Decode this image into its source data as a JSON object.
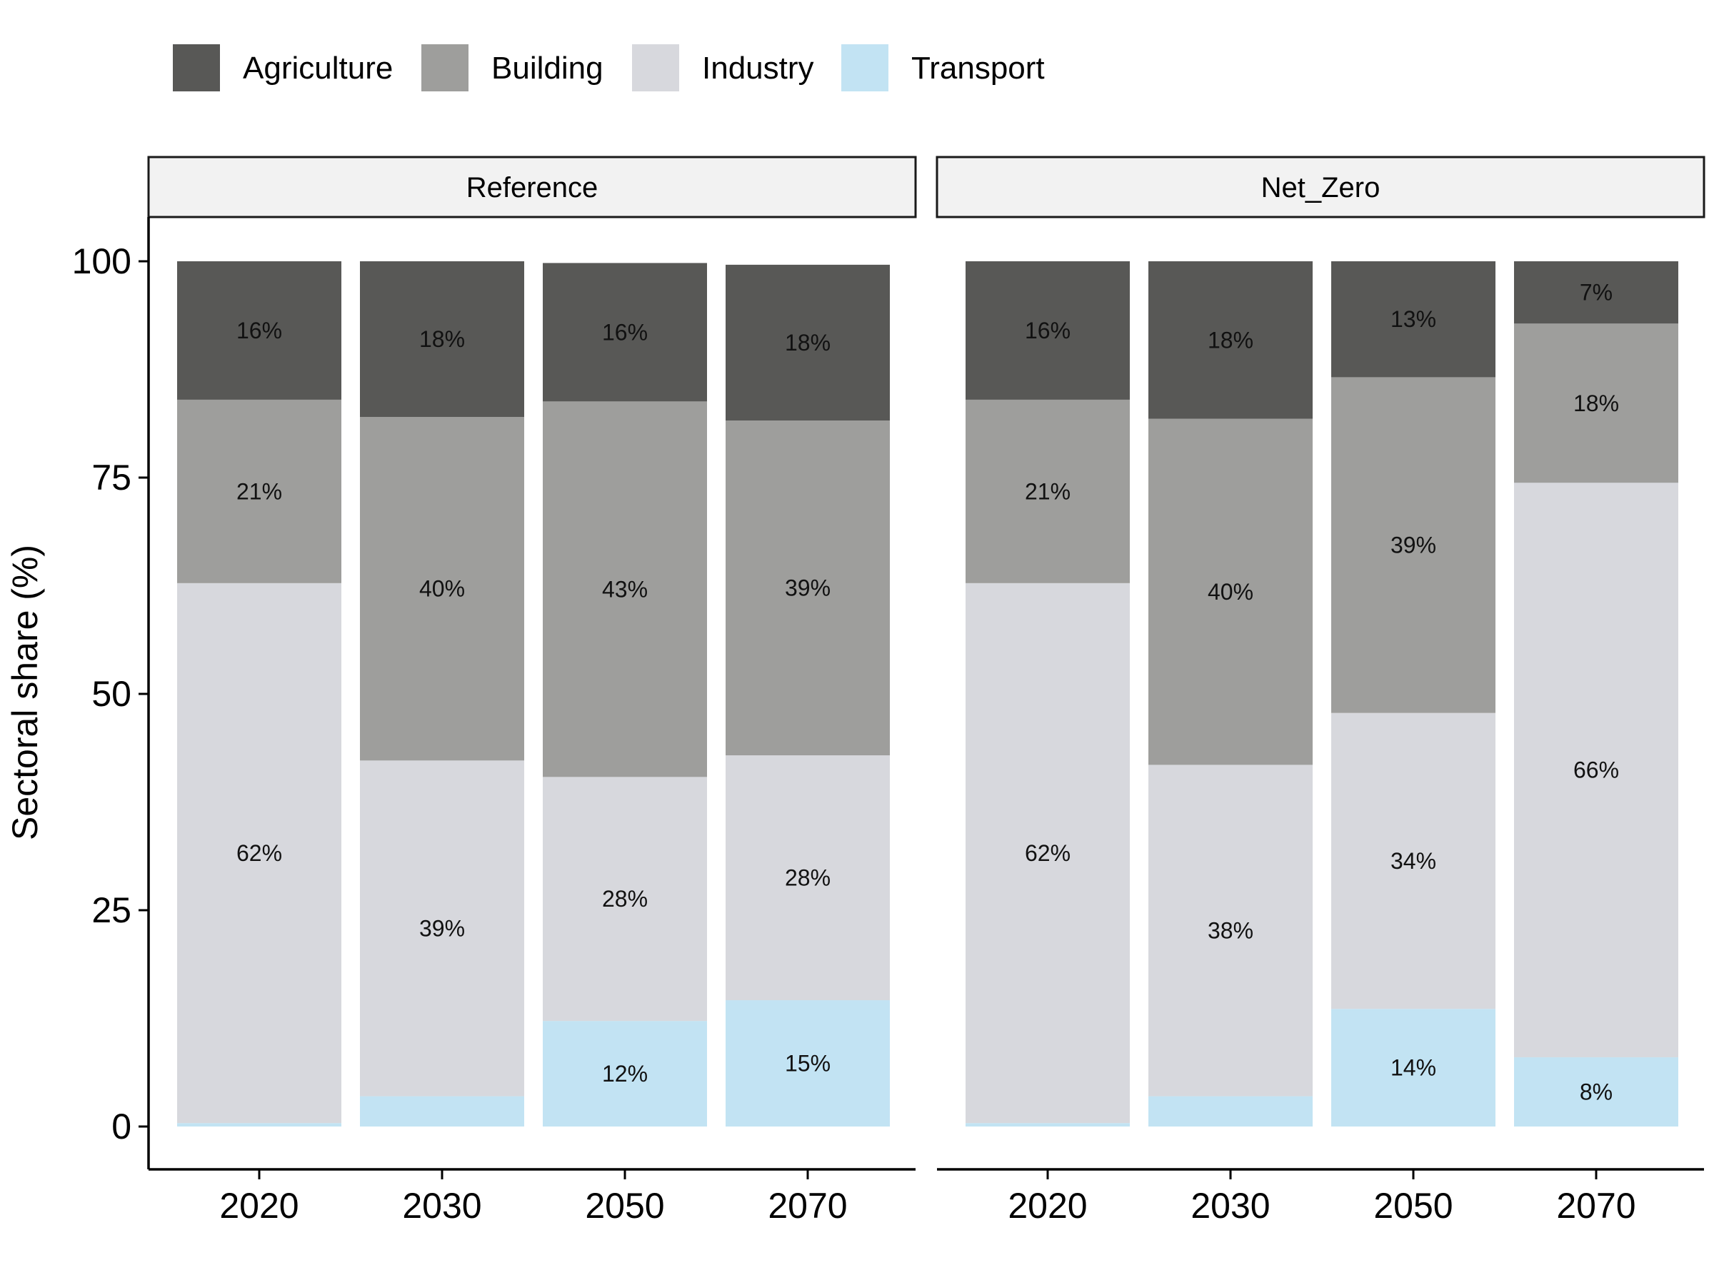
{
  "chart_data": {
    "type": "bar",
    "stacked": true,
    "normalized": true,
    "ylabel": "Sectoral share (%)",
    "xlabel": "",
    "ylim": [
      0,
      100
    ],
    "yticks": [
      0,
      25,
      50,
      75,
      100
    ],
    "grid": false,
    "legend_position": "top-left",
    "categories": [
      "2020",
      "2030",
      "2050",
      "2070"
    ],
    "series_order": [
      "Transport",
      "Industry",
      "Building",
      "Agriculture"
    ],
    "legend": [
      {
        "name": "Agriculture",
        "color": "#585856"
      },
      {
        "name": "Building",
        "color": "#9e9e9c"
      },
      {
        "name": "Industry",
        "color": "#d7d8dd"
      },
      {
        "name": "Transport",
        "color": "#c2e3f3"
      }
    ],
    "panels": [
      {
        "title": "Reference",
        "series": [
          {
            "name": "Agriculture",
            "values": [
              16,
              18,
              16,
              18
            ],
            "labels": [
              "16%",
              "18%",
              "16%",
              "18%"
            ]
          },
          {
            "name": "Building",
            "values": [
              21.2,
              39.7,
              43.4,
              38.7
            ],
            "labels": [
              "21%",
              "40%",
              "43%",
              "39%"
            ]
          },
          {
            "name": "Industry",
            "values": [
              62.4,
              38.8,
              28.2,
              28.3
            ],
            "labels": [
              "62%",
              "39%",
              "28%",
              "28%"
            ]
          },
          {
            "name": "Transport",
            "values": [
              0.4,
              3.5,
              12.2,
              14.6
            ],
            "labels": [
              "",
              "",
              "12%",
              "15%"
            ]
          }
        ]
      },
      {
        "title": "Net_Zero",
        "series": [
          {
            "name": "Agriculture",
            "values": [
              16,
              18.2,
              13.4,
              7.2
            ],
            "labels": [
              "16%",
              "18%",
              "13%",
              "7%"
            ]
          },
          {
            "name": "Building",
            "values": [
              21.2,
              40,
              38.8,
              18.4
            ],
            "labels": [
              "21%",
              "40%",
              "39%",
              "18%"
            ]
          },
          {
            "name": "Industry",
            "values": [
              62.4,
              38.3,
              34.2,
              66.4
            ],
            "labels": [
              "62%",
              "38%",
              "34%",
              "66%"
            ]
          },
          {
            "name": "Transport",
            "values": [
              0.4,
              3.5,
              13.6,
              8
            ],
            "labels": [
              "",
              "",
              "14%",
              "8%"
            ]
          }
        ]
      }
    ]
  }
}
